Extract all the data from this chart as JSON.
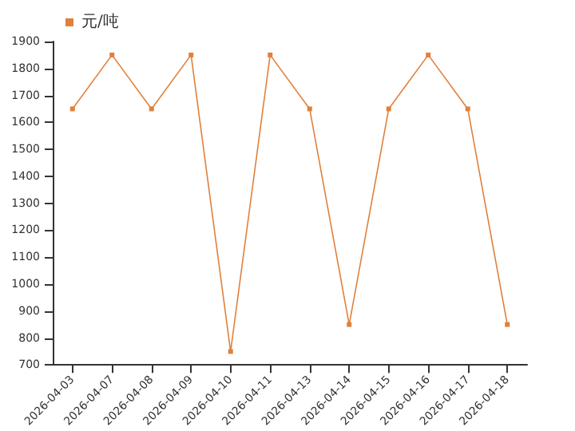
{
  "chart_data": {
    "type": "line",
    "categories": [
      "2026-04-03",
      "2026-04-07",
      "2026-04-08",
      "2026-04-09",
      "2026-04-10",
      "2026-04-11",
      "2026-04-13",
      "2026-04-14",
      "2026-04-15",
      "2026-04-16",
      "2026-04-17",
      "2026-04-18"
    ],
    "series": [
      {
        "name": "元/吨",
        "color": "#e0803c",
        "values": [
          1650,
          1850,
          1650,
          1850,
          750,
          1850,
          1650,
          850,
          1650,
          1850,
          1650,
          850
        ]
      }
    ],
    "ylim": [
      700,
      1900
    ],
    "yticks": [
      700,
      800,
      900,
      1000,
      1100,
      1200,
      1300,
      1400,
      1500,
      1600,
      1700,
      1800,
      1900
    ],
    "grid": false,
    "legend": "top left",
    "marker": "square",
    "line_style": "solid"
  }
}
